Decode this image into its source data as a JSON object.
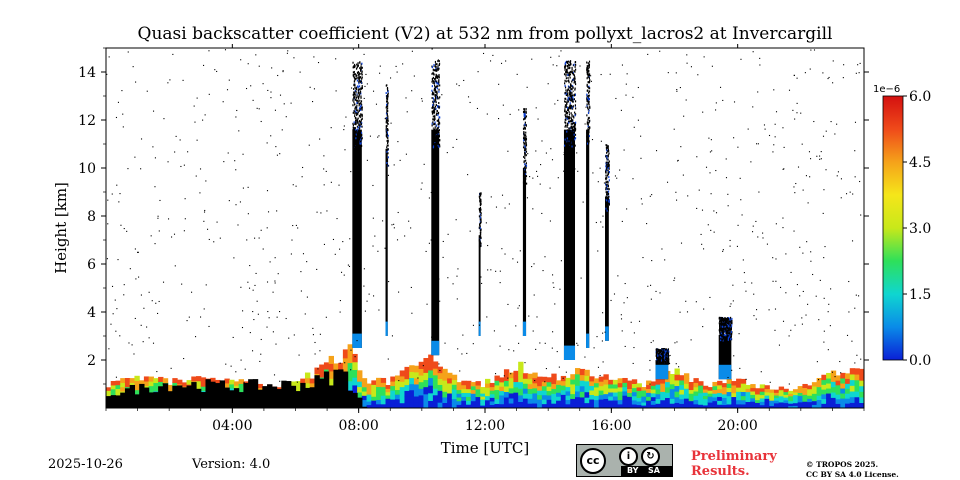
{
  "page": {
    "date": "2025-10-26",
    "version": "Version: 4.0",
    "license": {
      "cc_text": "cc",
      "by_text": "BY",
      "sa_text": "SA",
      "by_icon": "person-icon",
      "sa_icon": "share-alike-icon"
    },
    "preliminary_line1": "Preliminary",
    "preliminary_line2": "Results.",
    "copyright_line1": "© TROPOS 2025.",
    "copyright_line2": "CC BY SA 4.0 License."
  },
  "chart_data": {
    "type": "heatmap",
    "title": "Quasi backscatter coefficient (V2) at 532 nm from pollyxt_lacros2 at Invercargill",
    "xlabel": "Time [UTC]",
    "ylabel": "Height [km]",
    "xlim_hours": [
      0,
      24
    ],
    "ylim_km": [
      0,
      15
    ],
    "x_ticks": [
      {
        "value": 4,
        "label": "04:00"
      },
      {
        "value": 8,
        "label": "08:00"
      },
      {
        "value": 12,
        "label": "12:00"
      },
      {
        "value": 16,
        "label": "16:00"
      },
      {
        "value": 20,
        "label": "20:00"
      }
    ],
    "y_ticks": [
      {
        "value": 2,
        "label": "2"
      },
      {
        "value": 4,
        "label": "4"
      },
      {
        "value": 6,
        "label": "6"
      },
      {
        "value": 8,
        "label": "8"
      },
      {
        "value": 10,
        "label": "10"
      },
      {
        "value": 12,
        "label": "12"
      },
      {
        "value": 14,
        "label": "14"
      }
    ],
    "colorbar": {
      "multiplier": "1e−6",
      "range": [
        0.0,
        6.0
      ],
      "ticks": [
        {
          "value": 0.0,
          "label": "0.0"
        },
        {
          "value": 1.5,
          "label": "1.5"
        },
        {
          "value": 3.0,
          "label": "3.0"
        },
        {
          "value": 4.5,
          "label": "4.5"
        },
        {
          "value": 6.0,
          "label": "6.0"
        }
      ],
      "colors": [
        "#0a1fd6",
        "#0a8be8",
        "#0fd6d0",
        "#2ee05a",
        "#c8e81a",
        "#f5e61a",
        "#f5a21a",
        "#ef4a1a",
        "#d41010"
      ]
    },
    "boundary_layer": [
      {
        "t": 0.0,
        "h": 1.0
      },
      {
        "t": 1.0,
        "h": 1.2
      },
      {
        "t": 2.0,
        "h": 1.1
      },
      {
        "t": 3.0,
        "h": 1.2
      },
      {
        "t": 4.0,
        "h": 1.1
      },
      {
        "t": 5.0,
        "h": 0.9
      },
      {
        "t": 6.0,
        "h": 1.0
      },
      {
        "t": 7.0,
        "h": 1.8
      },
      {
        "t": 7.8,
        "h": 2.5
      },
      {
        "t": 8.2,
        "h": 1.2
      },
      {
        "t": 9.0,
        "h": 1.1
      },
      {
        "t": 10.0,
        "h": 2.2
      },
      {
        "t": 11.0,
        "h": 1.3
      },
      {
        "t": 12.0,
        "h": 1.0
      },
      {
        "t": 13.0,
        "h": 1.8
      },
      {
        "t": 14.0,
        "h": 1.2
      },
      {
        "t": 15.0,
        "h": 1.6
      },
      {
        "t": 16.0,
        "h": 1.2
      },
      {
        "t": 17.0,
        "h": 1.0
      },
      {
        "t": 18.0,
        "h": 1.5
      },
      {
        "t": 19.0,
        "h": 1.0
      },
      {
        "t": 20.0,
        "h": 1.2
      },
      {
        "t": 21.0,
        "h": 0.8
      },
      {
        "t": 22.0,
        "h": 0.8
      },
      {
        "t": 23.0,
        "h": 1.4
      },
      {
        "t": 24.0,
        "h": 1.6
      }
    ],
    "black_layer": [
      {
        "t": 0.0,
        "h": 0.6
      },
      {
        "t": 2.0,
        "h": 1.0
      },
      {
        "t": 4.0,
        "h": 0.9
      },
      {
        "t": 6.5,
        "h": 1.0
      },
      {
        "t": 7.5,
        "h": 1.5
      },
      {
        "t": 8.2,
        "h": 0.0
      }
    ],
    "cloud_columns": [
      {
        "t_start": 7.8,
        "t_end": 8.1,
        "h_bottom": 2.5,
        "h_top": 14.5
      },
      {
        "t_start": 8.85,
        "t_end": 8.92,
        "h_bottom": 3.0,
        "h_top": 13.5
      },
      {
        "t_start": 10.3,
        "t_end": 10.55,
        "h_bottom": 2.2,
        "h_top": 14.5
      },
      {
        "t_start": 11.8,
        "t_end": 11.86,
        "h_bottom": 3.0,
        "h_top": 9.0
      },
      {
        "t_start": 13.2,
        "t_end": 13.3,
        "h_bottom": 3.0,
        "h_top": 12.5
      },
      {
        "t_start": 14.5,
        "t_end": 14.85,
        "h_bottom": 2.0,
        "h_top": 14.5
      },
      {
        "t_start": 15.2,
        "t_end": 15.3,
        "h_bottom": 2.5,
        "h_top": 14.5
      },
      {
        "t_start": 15.8,
        "t_end": 15.92,
        "h_bottom": 2.8,
        "h_top": 11.0
      },
      {
        "t_start": 19.4,
        "t_end": 19.8,
        "h_bottom": 1.2,
        "h_top": 3.8
      },
      {
        "t_start": 17.4,
        "t_end": 17.8,
        "h_bottom": 1.2,
        "h_top": 2.5
      }
    ]
  }
}
